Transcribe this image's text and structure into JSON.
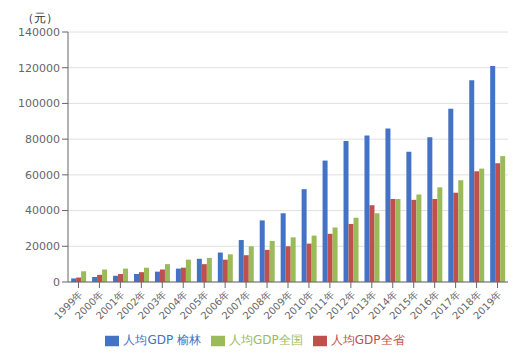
{
  "chart_data": {
    "type": "bar",
    "ylabel": "（元）",
    "categories": [
      "1999年",
      "2000年",
      "2001年",
      "2002年",
      "2003年",
      "2004年",
      "2005年",
      "2006年",
      "2007年",
      "2008年",
      "2009年",
      "2010年",
      "2011年",
      "2012年",
      "2013年",
      "2014年",
      "2015年",
      "2016年",
      "2017年",
      "2018年",
      "2019年"
    ],
    "series": [
      {
        "name": "人均GDP 榆林",
        "color": "#4472C4",
        "values": [
          2000,
          2800,
          3500,
          4500,
          5800,
          7500,
          13000,
          16500,
          23500,
          34500,
          38500,
          52000,
          68000,
          79000,
          82000,
          86000,
          73000,
          81000,
          97000,
          113000,
          121000
        ]
      },
      {
        "name": "人均GDP全省",
        "color": "#C0504D",
        "values": [
          2500,
          4000,
          4500,
          5500,
          7000,
          8000,
          10000,
          12500,
          15000,
          18000,
          20000,
          21500,
          27000,
          32500,
          43000,
          46500,
          46000,
          46500,
          50000,
          62000,
          66500
        ]
      },
      {
        "name": "人均GDP全国",
        "color": "#9BBB59",
        "values": [
          6000,
          7000,
          7500,
          8000,
          10000,
          12500,
          13500,
          15500,
          20000,
          23000,
          25000,
          26000,
          30500,
          36000,
          38500,
          46500,
          49000,
          53000,
          57000,
          63500,
          70500
        ]
      }
    ],
    "ylim": [
      0,
      140000
    ],
    "yticks": [
      0,
      20000,
      40000,
      60000,
      80000,
      100000,
      120000,
      140000
    ],
    "grid": true,
    "legend": "bottom"
  }
}
